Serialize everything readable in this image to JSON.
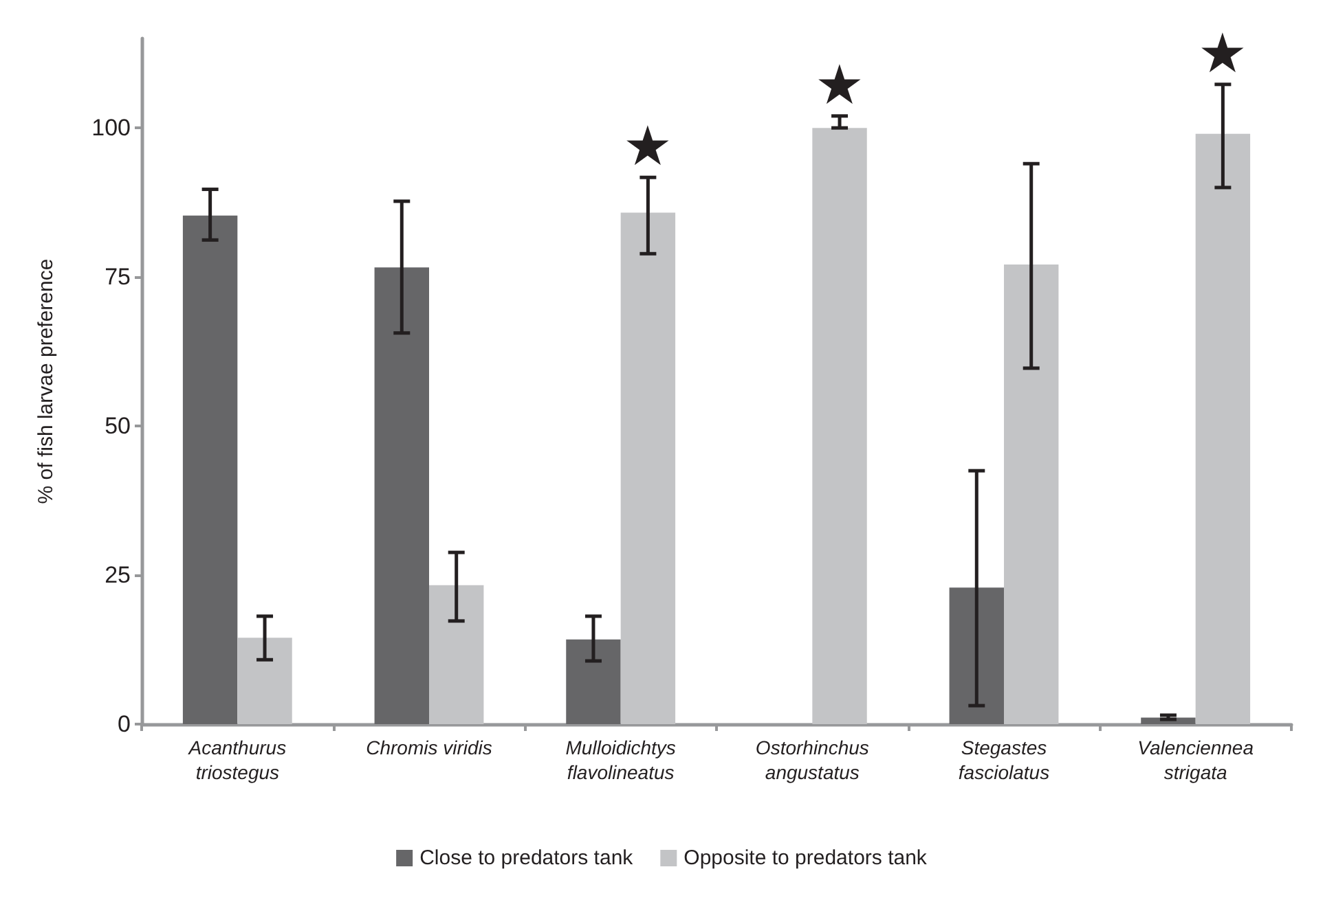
{
  "chart_data": {
    "type": "bar",
    "ylabel": "% of fish larvae preference",
    "categories": [
      "Acanthurus\ntriostegus",
      "Chromis viridis",
      "Mulloidichtys\nflavolineatus",
      "Ostorhinchus\nangustatus",
      "Stegastes\nfasciolatus",
      "Valenciennea\nstrigata"
    ],
    "series": [
      {
        "name": "Close to predators tank",
        "color": "#666668",
        "values": [
          85.3,
          76.6,
          14.2,
          0,
          22.9,
          1.1
        ],
        "errors": [
          [
            81.2,
            89.7
          ],
          [
            65.6,
            87.7
          ],
          [
            10.6,
            18.1
          ],
          null,
          [
            3.1,
            42.5
          ],
          [
            0.8,
            1.5
          ]
        ]
      },
      {
        "name": "Opposite to predators tank",
        "color": "#c3c4c6",
        "values": [
          14.5,
          23.3,
          85.8,
          100,
          77.1,
          99
        ],
        "errors": [
          [
            10.8,
            18.1
          ],
          [
            17.3,
            28.8
          ],
          [
            78.9,
            91.7
          ],
          [
            100,
            102
          ],
          [
            59.7,
            94
          ],
          [
            90,
            107.3
          ]
        ],
        "value_labels": [
          null,
          null,
          "★",
          "★",
          null,
          "★"
        ]
      }
    ],
    "ylim": [
      0,
      115
    ],
    "yticks": [
      0,
      25,
      50,
      75,
      100
    ],
    "grid": false,
    "legend": "bottom"
  }
}
